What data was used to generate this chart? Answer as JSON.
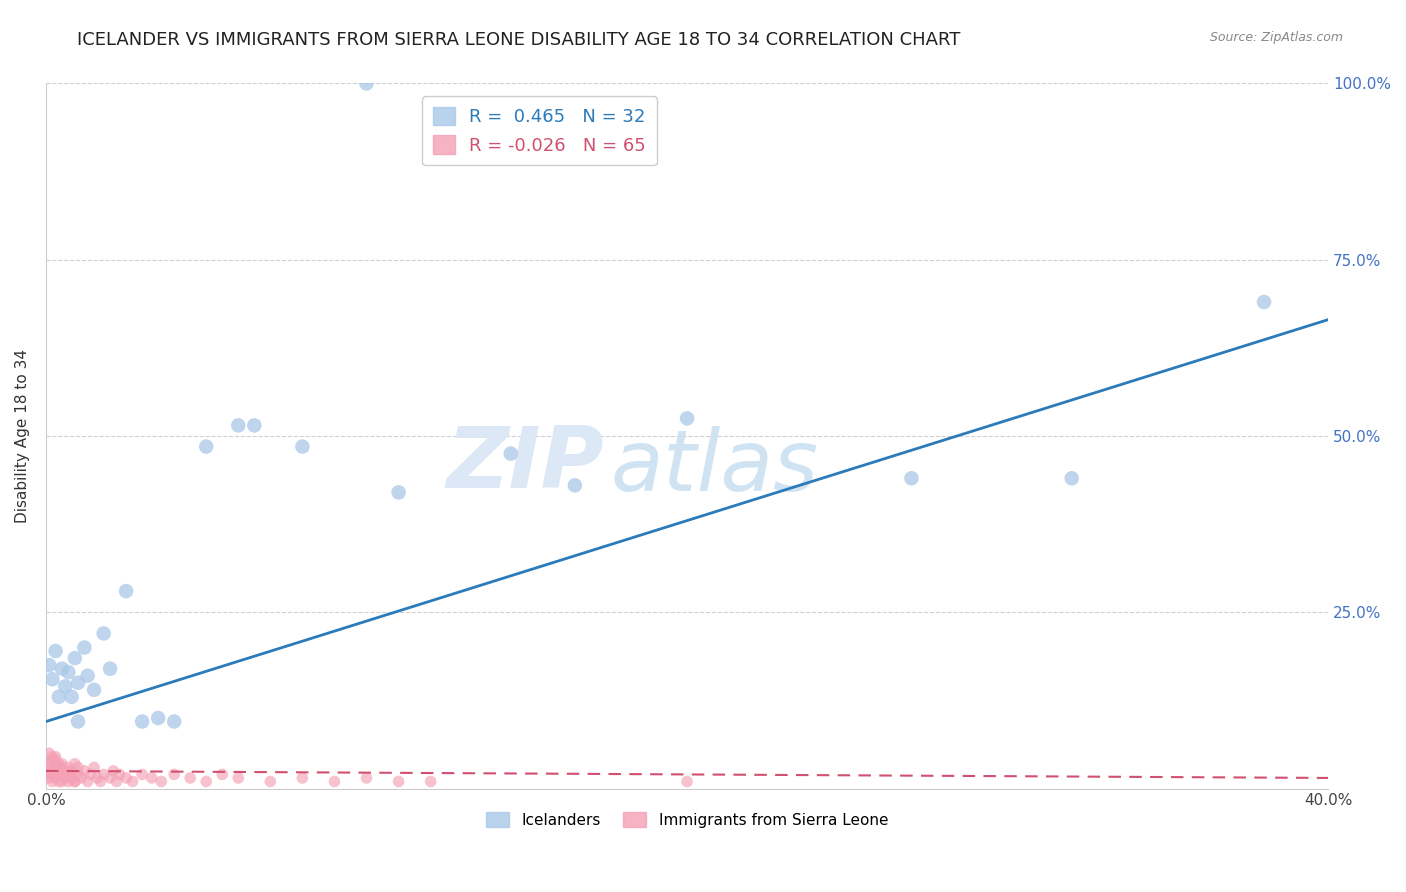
{
  "title": "ICELANDER VS IMMIGRANTS FROM SIERRA LEONE DISABILITY AGE 18 TO 34 CORRELATION CHART",
  "source": "Source: ZipAtlas.com",
  "ylabel": "Disability Age 18 to 34",
  "xlim": [
    0.0,
    0.4
  ],
  "ylim": [
    0.0,
    1.0
  ],
  "x_tick_positions": [
    0.0,
    0.05,
    0.1,
    0.15,
    0.2,
    0.25,
    0.3,
    0.35,
    0.4
  ],
  "x_tick_labels": [
    "0.0%",
    "",
    "",
    "",
    "",
    "",
    "",
    "",
    "40.0%"
  ],
  "y_ticks": [
    0.0,
    0.25,
    0.5,
    0.75,
    1.0
  ],
  "y_tick_labels": [
    "",
    "25.0%",
    "50.0%",
    "75.0%",
    "100.0%"
  ],
  "legend_entries": [
    {
      "label": "R =  0.465   N = 32",
      "color": "#a8c8e8"
    },
    {
      "label": "R = -0.026   N = 65",
      "color": "#f4a0b5"
    }
  ],
  "legend_labels_bottom": [
    "Icelanders",
    "Immigrants from Sierra Leone"
  ],
  "icelander_color": "#a8c8e8",
  "sierra_leone_color": "#f4a0b5",
  "blue_line_x": [
    0.0,
    0.4
  ],
  "blue_line_y": [
    0.095,
    0.665
  ],
  "pink_line_x": [
    0.0,
    0.4
  ],
  "pink_line_y": [
    0.025,
    0.015
  ],
  "icelander_points_x": [
    0.001,
    0.002,
    0.003,
    0.004,
    0.005,
    0.006,
    0.007,
    0.008,
    0.009,
    0.01,
    0.012,
    0.013,
    0.015,
    0.018,
    0.02,
    0.025,
    0.03,
    0.035,
    0.04,
    0.05,
    0.06,
    0.065,
    0.08,
    0.1,
    0.11,
    0.145,
    0.165,
    0.2,
    0.27,
    0.32,
    0.38,
    0.01
  ],
  "icelander_points_y": [
    0.175,
    0.155,
    0.195,
    0.13,
    0.17,
    0.145,
    0.165,
    0.13,
    0.185,
    0.15,
    0.2,
    0.16,
    0.14,
    0.22,
    0.17,
    0.28,
    0.095,
    0.1,
    0.095,
    0.485,
    0.515,
    0.515,
    0.485,
    1.0,
    0.42,
    0.475,
    0.43,
    0.525,
    0.44,
    0.44,
    0.69,
    0.095
  ],
  "sierra_leone_points_x": [
    0.0,
    0.0,
    0.001,
    0.001,
    0.001,
    0.002,
    0.002,
    0.002,
    0.003,
    0.003,
    0.003,
    0.003,
    0.004,
    0.004,
    0.005,
    0.005,
    0.005,
    0.006,
    0.006,
    0.007,
    0.007,
    0.008,
    0.008,
    0.009,
    0.009,
    0.01,
    0.01,
    0.011,
    0.012,
    0.013,
    0.014,
    0.015,
    0.016,
    0.017,
    0.018,
    0.02,
    0.021,
    0.022,
    0.023,
    0.025,
    0.027,
    0.03,
    0.033,
    0.036,
    0.04,
    0.045,
    0.05,
    0.055,
    0.06,
    0.07,
    0.08,
    0.09,
    0.1,
    0.11,
    0.12,
    0.001,
    0.002,
    0.003,
    0.004,
    0.005,
    0.006,
    0.007,
    0.008,
    0.009,
    0.2
  ],
  "sierra_leone_points_y": [
    0.02,
    0.03,
    0.015,
    0.025,
    0.035,
    0.01,
    0.02,
    0.04,
    0.015,
    0.025,
    0.035,
    0.045,
    0.01,
    0.03,
    0.02,
    0.01,
    0.035,
    0.015,
    0.025,
    0.01,
    0.03,
    0.015,
    0.025,
    0.01,
    0.035,
    0.02,
    0.03,
    0.015,
    0.025,
    0.01,
    0.02,
    0.03,
    0.015,
    0.01,
    0.02,
    0.015,
    0.025,
    0.01,
    0.02,
    0.015,
    0.01,
    0.02,
    0.015,
    0.01,
    0.02,
    0.015,
    0.01,
    0.02,
    0.015,
    0.01,
    0.015,
    0.01,
    0.015,
    0.01,
    0.01,
    0.05,
    0.045,
    0.04,
    0.035,
    0.03,
    0.025,
    0.02,
    0.015,
    0.01,
    0.01
  ],
  "watermark_zip": "ZIP",
  "watermark_atlas": "atlas",
  "background_color": "#ffffff",
  "grid_color": "#d0d0d0",
  "title_fontsize": 13,
  "axis_label_fontsize": 11,
  "tick_fontsize": 11,
  "title_color": "#222222",
  "blue_line_color": "#2b7bba",
  "pink_line_color": "#d05070"
}
